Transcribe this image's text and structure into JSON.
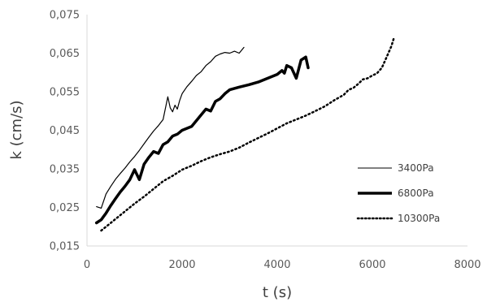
{
  "chart_data": {
    "type": "line",
    "xlabel": "t (s)",
    "ylabel": "k (cm/s)",
    "xlim": [
      0,
      8000
    ],
    "ylim": [
      0.015,
      0.075
    ],
    "x_ticks": [
      0,
      2000,
      4000,
      6000,
      8000
    ],
    "x_tick_labels": [
      "0",
      "2000",
      "4000",
      "6000",
      "8000"
    ],
    "y_ticks": [
      0.015,
      0.025,
      0.035,
      0.045,
      0.055,
      0.065,
      0.075
    ],
    "y_tick_labels": [
      "0,015",
      "0,025",
      "0,035",
      "0,045",
      "0,055",
      "0,065",
      "0,075"
    ],
    "grid": false,
    "legend_position": "right",
    "series": [
      {
        "name": "3400Pa",
        "style": "thin",
        "color": "#000000",
        "x": [
          200,
          300,
          400,
          500,
          600,
          700,
          800,
          900,
          1000,
          1100,
          1200,
          1300,
          1400,
          1500,
          1600,
          1700,
          1750,
          1800,
          1850,
          1900,
          1950,
          2000,
          2100,
          2200,
          2300,
          2400,
          2500,
          2600,
          2700,
          2800,
          2900,
          3000,
          3100,
          3200,
          3300
        ],
        "values": [
          0.0252,
          0.0248,
          0.0285,
          0.0305,
          0.0323,
          0.0338,
          0.0352,
          0.0368,
          0.0382,
          0.0398,
          0.0415,
          0.0432,
          0.0448,
          0.0462,
          0.0478,
          0.0537,
          0.0508,
          0.0498,
          0.0515,
          0.0505,
          0.0528,
          0.0545,
          0.0563,
          0.0577,
          0.0592,
          0.0602,
          0.0618,
          0.0628,
          0.0642,
          0.0648,
          0.0652,
          0.065,
          0.0655,
          0.065,
          0.0665
        ]
      },
      {
        "name": "6800Pa",
        "style": "thick",
        "color": "#000000",
        "x": [
          200,
          300,
          400,
          500,
          600,
          700,
          800,
          900,
          1000,
          1100,
          1200,
          1300,
          1400,
          1500,
          1600,
          1700,
          1800,
          1900,
          2000,
          2200,
          2400,
          2500,
          2600,
          2700,
          2800,
          2900,
          3000,
          3200,
          3400,
          3600,
          3800,
          4000,
          4100,
          4150,
          4200,
          4300,
          4400,
          4500,
          4600,
          4650
        ],
        "values": [
          0.021,
          0.0218,
          0.0235,
          0.0255,
          0.0273,
          0.029,
          0.0305,
          0.0322,
          0.0348,
          0.0322,
          0.0362,
          0.038,
          0.0395,
          0.039,
          0.0413,
          0.042,
          0.0435,
          0.044,
          0.045,
          0.046,
          0.049,
          0.0505,
          0.05,
          0.0525,
          0.0532,
          0.0545,
          0.0555,
          0.0562,
          0.0568,
          0.0575,
          0.0585,
          0.0595,
          0.0605,
          0.0598,
          0.0618,
          0.0612,
          0.0585,
          0.0632,
          0.064,
          0.0612
        ]
      },
      {
        "name": "10300Pa",
        "style": "dotted",
        "color": "#000000",
        "x": [
          300,
          400,
          600,
          800,
          1000,
          1200,
          1400,
          1600,
          1800,
          2000,
          2200,
          2400,
          2600,
          2800,
          3000,
          3200,
          3400,
          3600,
          3800,
          4000,
          4200,
          4400,
          4600,
          4800,
          5000,
          5200,
          5400,
          5500,
          5600,
          5700,
          5800,
          5900,
          6000,
          6100,
          6200,
          6300,
          6400,
          6450
        ],
        "values": [
          0.019,
          0.02,
          0.022,
          0.024,
          0.026,
          0.0278,
          0.0298,
          0.0318,
          0.0332,
          0.0348,
          0.0358,
          0.037,
          0.038,
          0.0388,
          0.0395,
          0.0405,
          0.0418,
          0.043,
          0.0442,
          0.0455,
          0.0468,
          0.0478,
          0.0488,
          0.05,
          0.0512,
          0.0528,
          0.0542,
          0.0555,
          0.056,
          0.057,
          0.0582,
          0.0585,
          0.0592,
          0.0598,
          0.0612,
          0.064,
          0.0668,
          0.0688
        ]
      }
    ]
  }
}
